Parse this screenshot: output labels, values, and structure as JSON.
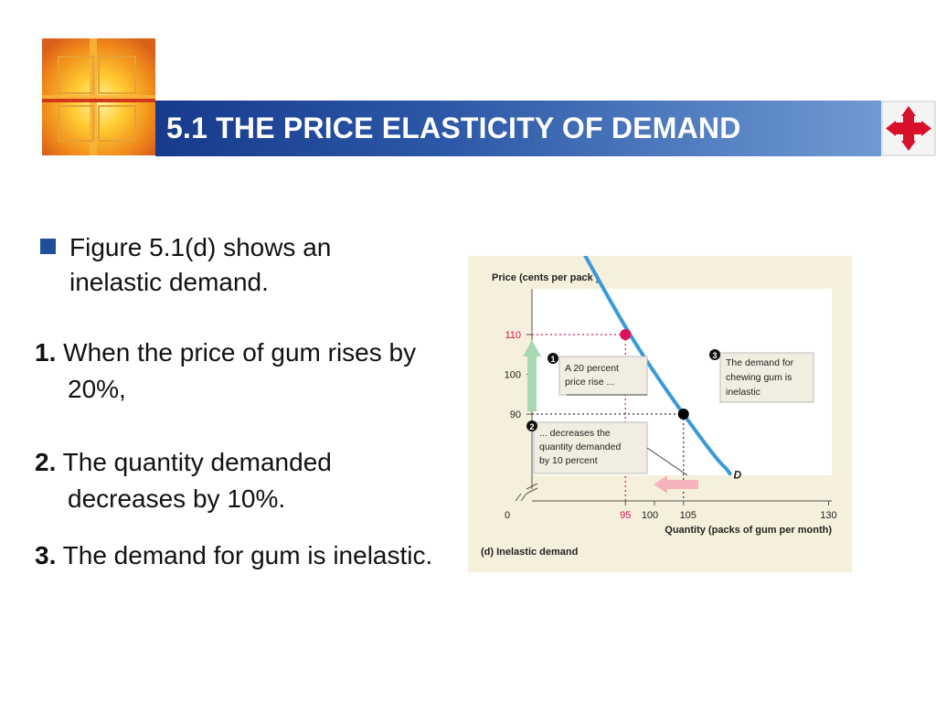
{
  "header": {
    "title": "5.1 THE PRICE ELASTICITY OF DEMAND",
    "nav_icon": "four-way-arrow-icon",
    "logo_icon": "cross-window-logo"
  },
  "body": {
    "bullet": "Figure 5.1(d) shows an inelastic demand.",
    "items": [
      {
        "num": "1.",
        "text": "When the price of gum rises by 20%,"
      },
      {
        "num": "2.",
        "text": "The quantity demanded decreases by 10%."
      },
      {
        "num": "3.",
        "text": "The demand for gum is inelastic."
      }
    ]
  },
  "figure": {
    "caption": "(d)  Inelastic demand",
    "callouts": [
      {
        "num": "1",
        "text": [
          "A 20 percent",
          "price rise ..."
        ]
      },
      {
        "num": "2",
        "text": [
          "... decreases the",
          "quantity demanded",
          "by 10 percent"
        ]
      },
      {
        "num": "3",
        "text": [
          "The demand for",
          "chewing gum is",
          "inelastic"
        ]
      }
    ],
    "curve_label": "D"
  },
  "chart_data": {
    "type": "line",
    "title": "",
    "xlabel": "Quantity (packs of gum per month)",
    "ylabel": "Price (cents per pack )",
    "x_ticks": [
      "0",
      "95",
      "100",
      "105",
      "130"
    ],
    "y_ticks": [
      "90",
      "100",
      "110"
    ],
    "series": [
      {
        "name": "D",
        "points": [
          [
            88,
            130
          ],
          [
            95,
            110
          ],
          [
            105,
            90
          ],
          [
            113,
            75
          ]
        ]
      }
    ],
    "highlighted_points": [
      {
        "x": 95,
        "y": 110,
        "color": "#e0105a"
      },
      {
        "x": 105,
        "y": 90,
        "color": "#000000"
      }
    ],
    "colors": {
      "curve": "#3a9ad9",
      "price_rise_arrow": "#a8d8b0",
      "quantity_arrow": "#f4b3bd",
      "highlight": "#e0105a"
    }
  }
}
